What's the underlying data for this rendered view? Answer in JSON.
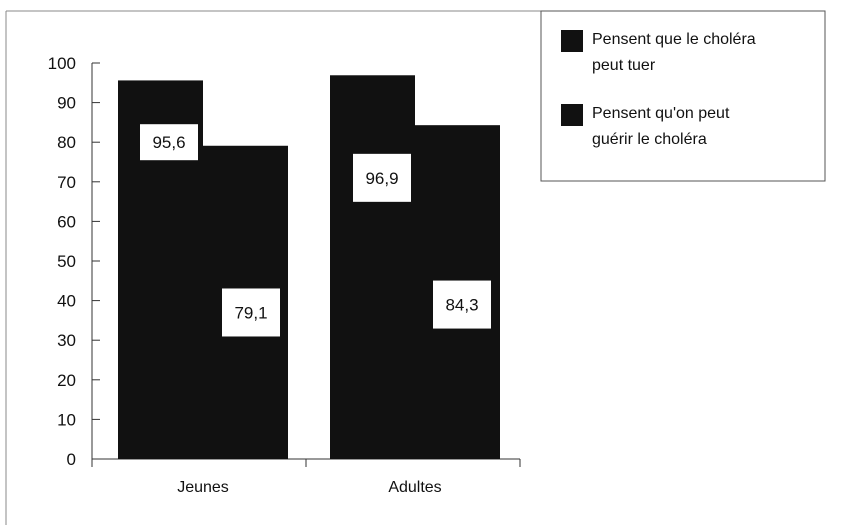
{
  "chart_data": {
    "type": "bar",
    "categories": [
      "Jeunes",
      "Adultes"
    ],
    "series": [
      {
        "name": "Pensent que le choléra peut tuer",
        "values": [
          95.6,
          96.9
        ],
        "labels": [
          "95,6",
          "96,9"
        ]
      },
      {
        "name": "Pensent qu'on peut guérir le choléra",
        "values": [
          79.1,
          84.3
        ],
        "labels": [
          "79,1",
          "84,3"
        ]
      }
    ],
    "ylim": [
      0,
      100
    ],
    "yticks": [
      0,
      10,
      20,
      30,
      40,
      50,
      60,
      70,
      80,
      90,
      100
    ],
    "legend": {
      "placement": "top-right",
      "entries": [
        [
          "Pensent que le choléra",
          "peut tuer"
        ],
        [
          "Pensent qu'on peut",
          "guérir le choléra"
        ]
      ]
    },
    "colors": {
      "series": [
        "#111111",
        "#111111"
      ],
      "axis": "#333333"
    }
  }
}
